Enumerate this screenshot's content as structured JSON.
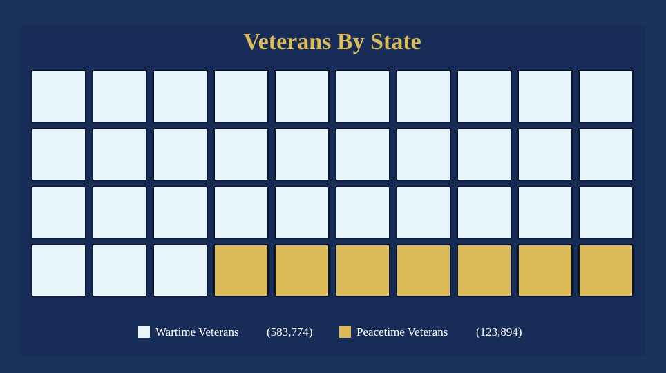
{
  "chart_data": {
    "type": "waffle",
    "title": "Veterans By State",
    "series": [
      {
        "name": "Wartime Veterans",
        "color": "#e8f6fb",
        "values": [
          583774
        ],
        "value_labels": [
          "(583,774)"
        ]
      },
      {
        "name": "Peacetime Veterans",
        "color": "#dcbc5a",
        "values": [
          123894
        ],
        "value_labels": [
          "(123,894)"
        ]
      }
    ]
  }
}
